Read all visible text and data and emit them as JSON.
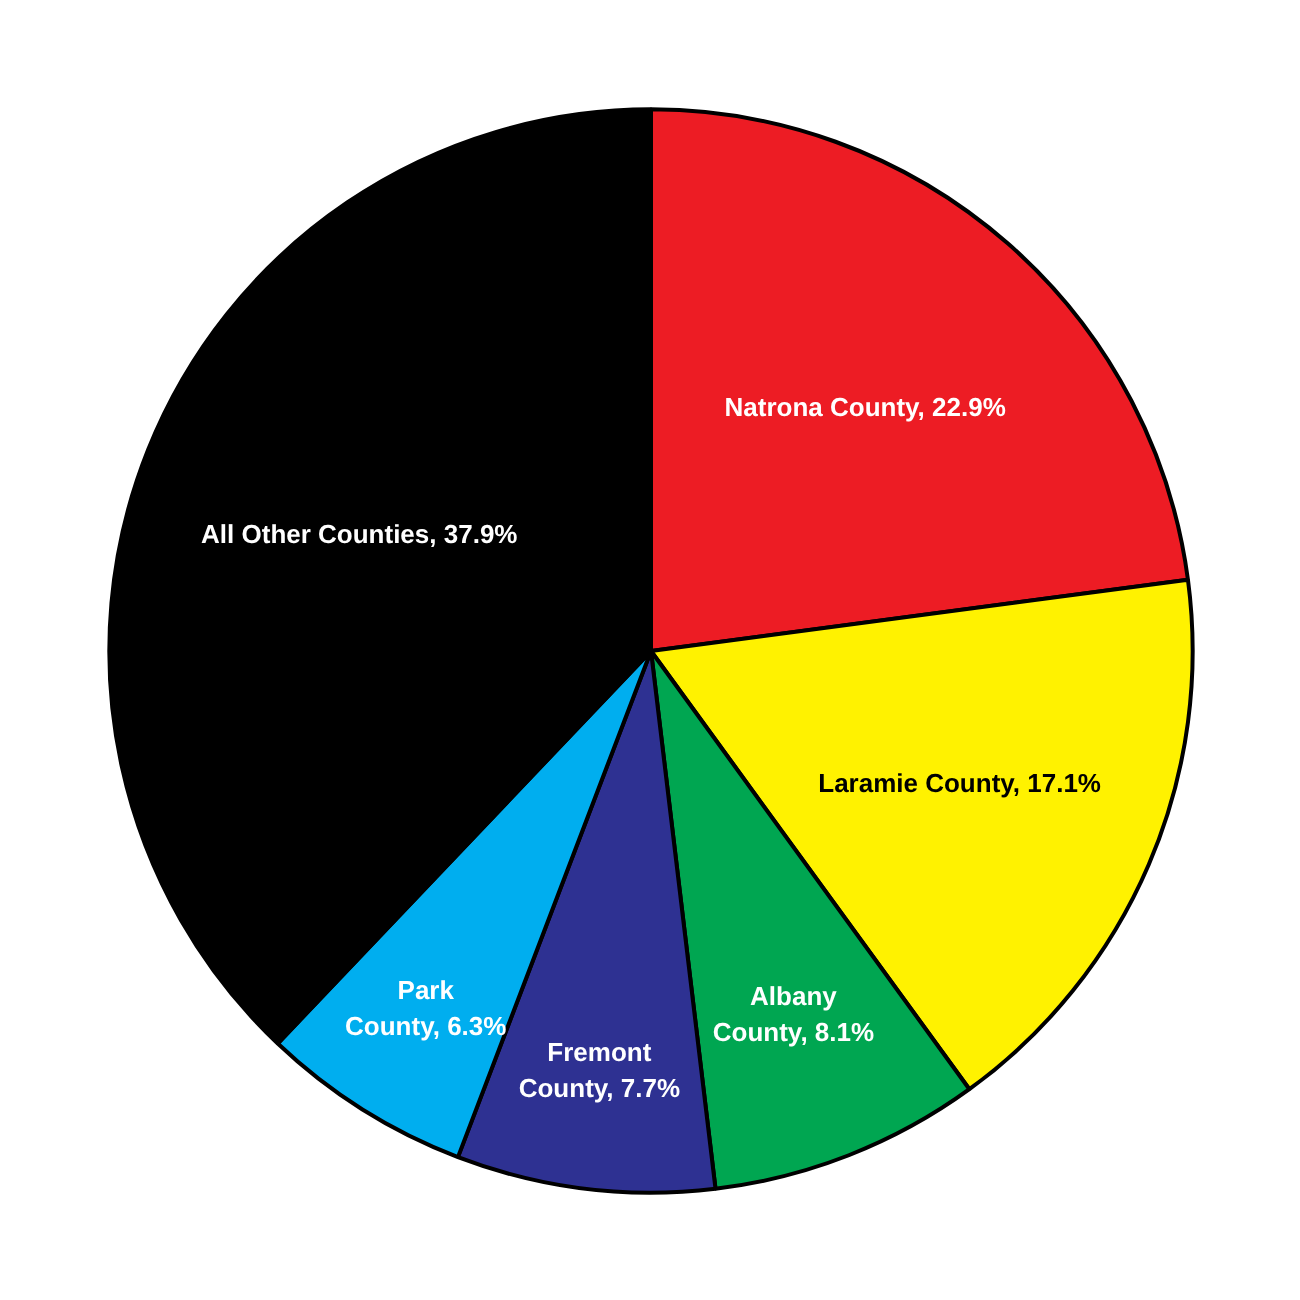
{
  "chart_data": {
    "type": "pie",
    "categories": [
      "Natrona County",
      "Laramie County",
      "Albany County",
      "Fremont County",
      "Park County",
      "All Other Counties"
    ],
    "values": [
      22.9,
      17.1,
      8.1,
      7.7,
      6.3,
      37.9
    ],
    "value_labels": [
      "22.9%",
      "17.1%",
      "8.1%",
      "7.7%",
      "6.3%",
      "37.9%"
    ],
    "colors": [
      "#ed1c24",
      "#fff200",
      "#00a651",
      "#2e3192",
      "#00aeef",
      "#000000"
    ]
  }
}
